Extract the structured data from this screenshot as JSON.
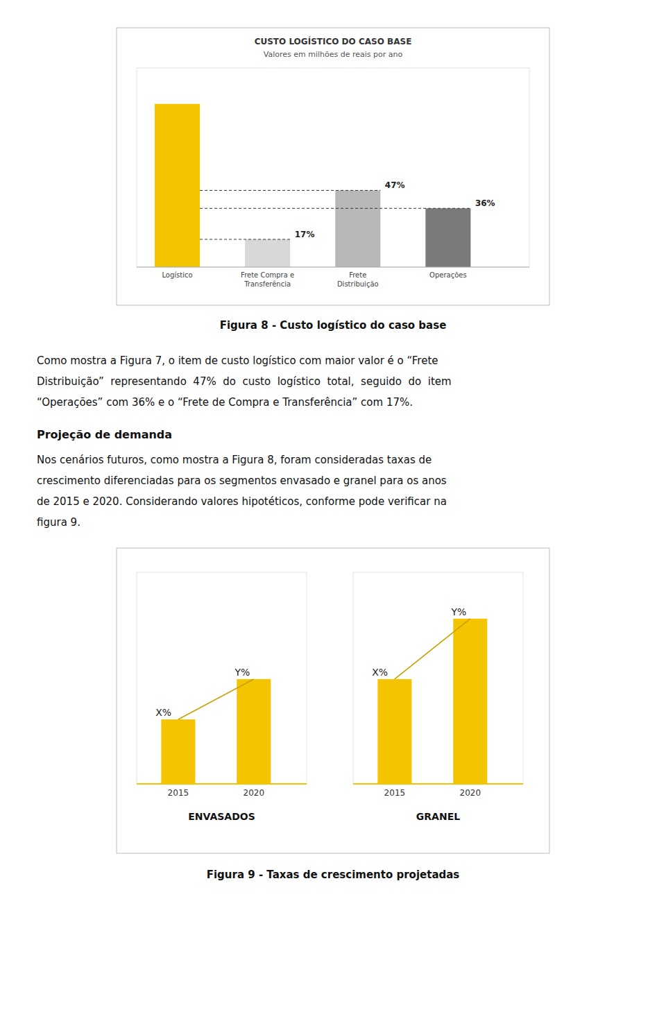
{
  "chart_data": [
    {
      "type": "bar",
      "title": "CUSTO LOGÍSTICO DO CASO BASE",
      "subtitle": "Valores em milhões de reais por ano",
      "categories": [
        "Logístico",
        "Frete Compra e\nTransferência",
        "Frete\nDistribuição",
        "Operações"
      ],
      "values": [
        100,
        17,
        47,
        36
      ],
      "value_labels": [
        null,
        "17%",
        "47%",
        "36%"
      ],
      "colors": [
        "#f5c400",
        "#d8d8d8",
        "#b8b8b8",
        "#7a7a7a"
      ],
      "ylim": [
        0,
        122
      ],
      "tick_labels": "x",
      "data_labels": true,
      "caption": "Figura 8 - Custo logístico do caso base"
    },
    {
      "type": "bar",
      "title": "ENVASADOS",
      "categories": [
        "2015",
        "2020"
      ],
      "series": [
        {
          "type": "bar",
          "color": "#f5c400",
          "values": [
            0.32,
            0.52
          ],
          "value_labels": [
            "X%",
            "Y%"
          ]
        },
        {
          "type": "line",
          "color": "#c8a000",
          "values": [
            0.32,
            0.52
          ]
        }
      ],
      "ylim": [
        0,
        1.05
      ],
      "tick_labels": "x",
      "data_labels": true,
      "caption": "Figura 9 - Taxas de crescimento projetadas"
    },
    {
      "type": "bar",
      "title": "GRANEL",
      "categories": [
        "2015",
        "2020"
      ],
      "series": [
        {
          "type": "bar",
          "color": "#f5c400",
          "values": [
            0.52,
            0.82
          ],
          "value_labels": [
            "X%",
            "Y%"
          ]
        },
        {
          "type": "line",
          "color": "#c8a000",
          "values": [
            0.52,
            0.82
          ]
        }
      ],
      "ylim": [
        0,
        1.05
      ],
      "tick_labels": "x",
      "data_labels": true
    }
  ],
  "page_text": {
    "paragraph1": [
      "Como mostra a Figura 7, o item de custo logístico com maior valor é o “Frete",
      "Distribuição”  representando  47%  do  custo  logístico  total,  seguido  do  item",
      "“Operações” com 36% e o “Frete de Compra e Transferência” com 17%."
    ],
    "heading": "Projeção de demanda",
    "paragraph2": [
      "Nos cenários futuros, como mostra a Figura 8, foram consideradas taxas de",
      "crescimento diferenciadas para os segmentos envasado e granel para os anos",
      "de 2015 e 2020. Considerando valores hipotéticos, conforme pode verificar na",
      "figura 9."
    ]
  }
}
